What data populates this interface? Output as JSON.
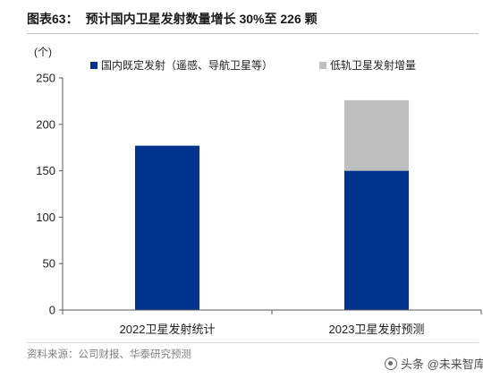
{
  "header": {
    "title_label": "图表63："
  },
  "chart_data": {
    "type": "bar",
    "stacked": true,
    "title": "预计国内卫星发射数量增长 30%至 226 颗",
    "xlabel": "",
    "ylabel": "(个)",
    "ylim": [
      0,
      250
    ],
    "yticks": [
      0,
      50,
      100,
      150,
      200,
      250
    ],
    "grid": false,
    "legend": "top",
    "categories": [
      "2022卫星发射统计",
      "2023卫星发射预测"
    ],
    "series": [
      {
        "name": "国内既定发射（遥感、导航卫星等）",
        "values": [
          177,
          150
        ],
        "color": "#00338d"
      },
      {
        "name": "低轨卫星发射增量",
        "values": [
          0,
          76
        ],
        "color": "#bfbfbf"
      }
    ]
  },
  "footer": {
    "source": "资料来源：公司财报、华泰研究预测"
  },
  "watermark": {
    "text": "头条 @未来智库",
    "icon": "toutiao-logo-icon"
  }
}
